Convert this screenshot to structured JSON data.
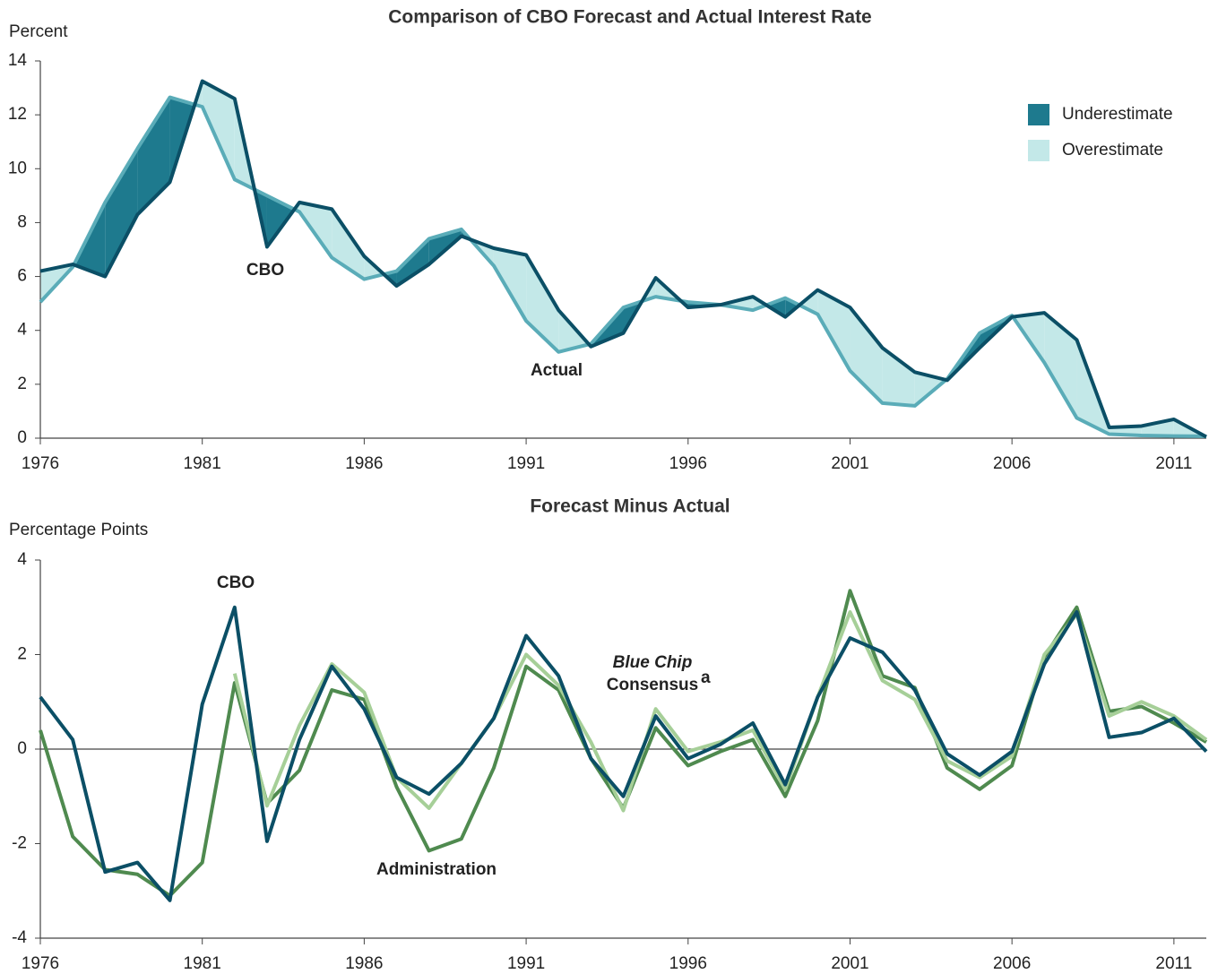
{
  "chart_data": [
    {
      "type": "line",
      "title": "Comparison of CBO Forecast and Actual Interest Rate",
      "y_label": "Percent",
      "x": [
        1976,
        1977,
        1978,
        1979,
        1980,
        1981,
        1982,
        1983,
        1984,
        1985,
        1986,
        1987,
        1988,
        1989,
        1990,
        1991,
        1992,
        1993,
        1994,
        1995,
        1996,
        1997,
        1998,
        1999,
        2000,
        2001,
        2002,
        2003,
        2004,
        2005,
        2006,
        2007,
        2008,
        2009,
        2010,
        2011,
        2012
      ],
      "xlim": [
        1976,
        2012
      ],
      "xticks": [
        1976,
        1981,
        1986,
        1991,
        1996,
        2001,
        2006,
        2011
      ],
      "ylim": [
        0,
        14
      ],
      "yticks": [
        0,
        2,
        4,
        6,
        8,
        10,
        12,
        14
      ],
      "series": [
        {
          "name": "CBO",
          "color": "#0b4f66",
          "values": [
            6.2,
            6.45,
            6.0,
            8.3,
            9.5,
            13.25,
            12.6,
            7.1,
            8.75,
            8.5,
            6.75,
            5.65,
            6.45,
            7.5,
            7.05,
            6.8,
            4.75,
            3.4,
            3.9,
            5.95,
            4.85,
            4.95,
            5.25,
            4.5,
            5.5,
            4.85,
            3.35,
            2.45,
            2.15,
            3.35,
            4.5,
            4.65,
            3.65,
            0.4,
            0.45,
            0.7,
            0.05
          ]
        },
        {
          "name": "Actual",
          "color": "#5aacb8",
          "values": [
            5.05,
            6.35,
            8.75,
            10.75,
            12.65,
            12.3,
            9.6,
            9.0,
            8.4,
            6.7,
            5.9,
            6.2,
            7.4,
            7.75,
            6.4,
            4.35,
            3.2,
            3.5,
            4.85,
            5.25,
            5.05,
            4.95,
            4.75,
            5.2,
            4.6,
            2.5,
            1.3,
            1.2,
            2.2,
            3.9,
            4.55,
            2.8,
            0.75,
            0.15,
            0.1,
            0.08,
            0.07
          ]
        }
      ],
      "fills": [
        {
          "name": "Underestimate",
          "color": "#1e7a8e"
        },
        {
          "name": "Overestimate",
          "color": "#c3e8e8"
        }
      ],
      "legend": "upper right"
    },
    {
      "type": "line",
      "title": "Forecast Minus Actual",
      "y_label": "Percentage Points",
      "x": [
        1976,
        1977,
        1978,
        1979,
        1980,
        1981,
        1982,
        1983,
        1984,
        1985,
        1986,
        1987,
        1988,
        1989,
        1990,
        1991,
        1992,
        1993,
        1994,
        1995,
        1996,
        1997,
        1998,
        1999,
        2000,
        2001,
        2002,
        2003,
        2004,
        2005,
        2006,
        2007,
        2008,
        2009,
        2010,
        2011,
        2012
      ],
      "xlim": [
        1976,
        2012
      ],
      "xticks": [
        1976,
        1981,
        1986,
        1991,
        1996,
        2001,
        2006,
        2011
      ],
      "ylim": [
        -4,
        4
      ],
      "yticks": [
        -4,
        -2,
        0,
        2,
        4
      ],
      "zero_line": true,
      "series": [
        {
          "name": "Administration",
          "color": "#4f8a4f",
          "values": [
            0.4,
            -1.85,
            -2.55,
            -2.65,
            -3.1,
            -2.4,
            1.4,
            -1.15,
            -0.45,
            1.25,
            1.05,
            -0.8,
            -2.15,
            -1.9,
            -0.4,
            1.75,
            1.25,
            -0.2,
            -1.25,
            0.45,
            -0.35,
            -0.05,
            0.2,
            -1.0,
            0.6,
            3.35,
            1.55,
            1.3,
            -0.4,
            -0.85,
            -0.35,
            1.95,
            3.0,
            0.8,
            0.9,
            0.55,
            0.15
          ]
        },
        {
          "name_lines": [
            "Blue Chip",
            "Consensus"
          ],
          "footnote_mark": "a",
          "color": "#a6cf98",
          "values": [
            null,
            null,
            null,
            null,
            null,
            null,
            1.6,
            -1.2,
            0.5,
            1.8,
            1.2,
            -0.6,
            -1.25,
            -0.3,
            0.65,
            2.0,
            1.35,
            0.15,
            -1.3,
            0.85,
            -0.05,
            0.15,
            0.4,
            -0.85,
            1.1,
            2.9,
            1.45,
            1.05,
            -0.25,
            -0.6,
            -0.15,
            2.0,
            2.85,
            0.7,
            1.0,
            0.7,
            0.2
          ]
        },
        {
          "name": "CBO",
          "color": "#0b4f66",
          "values": [
            1.1,
            0.2,
            -2.6,
            -2.4,
            -3.2,
            0.95,
            3.0,
            -1.95,
            0.2,
            1.75,
            0.85,
            -0.6,
            -0.95,
            -0.3,
            0.65,
            2.4,
            1.55,
            -0.2,
            -1.0,
            0.7,
            -0.2,
            0.1,
            0.55,
            -0.75,
            1.1,
            2.35,
            2.05,
            1.25,
            -0.1,
            -0.55,
            -0.05,
            1.8,
            2.9,
            0.25,
            0.35,
            0.65,
            -0.05
          ]
        }
      ]
    }
  ]
}
